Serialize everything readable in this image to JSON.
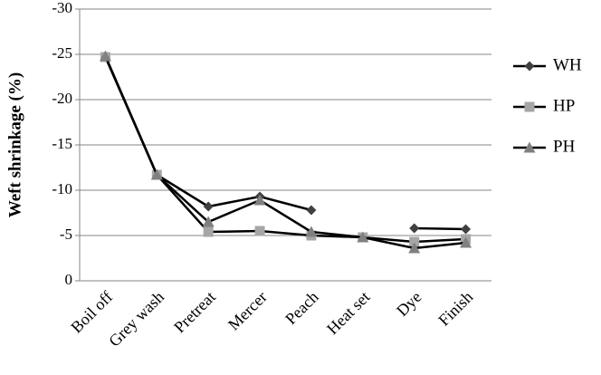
{
  "chart_data": {
    "type": "line",
    "y_label": "Weft shrinkage (%)",
    "categories": [
      "Boil off",
      "Grey wash",
      "Pretreat",
      "Mercer",
      "Peach",
      "Heat set",
      "Dye",
      "Finish"
    ],
    "series": [
      {
        "name": "WH",
        "color": "#000000",
        "marker": "diamond",
        "marker_color": "#404040",
        "values": [
          -24.8,
          -11.7,
          -8.2,
          -9.3,
          -7.8,
          null,
          -5.8,
          -5.7
        ]
      },
      {
        "name": "HP",
        "color": "#000000",
        "marker": "square",
        "marker_color": "#a6a6a6",
        "values": [
          -24.7,
          -11.7,
          -5.4,
          -5.5,
          -5.0,
          -4.8,
          -4.3,
          -4.6
        ]
      },
      {
        "name": "PH",
        "color": "#000000",
        "marker": "triangle",
        "marker_color": "#808080",
        "values": [
          -24.8,
          -11.7,
          -6.5,
          -8.9,
          -5.4,
          -4.8,
          -3.6,
          -4.2
        ]
      }
    ],
    "ylim": [
      0,
      -30
    ],
    "yticks": [
      0,
      -5,
      -10,
      -15,
      -20,
      -25,
      -30
    ],
    "grid": true,
    "legend": "right"
  }
}
